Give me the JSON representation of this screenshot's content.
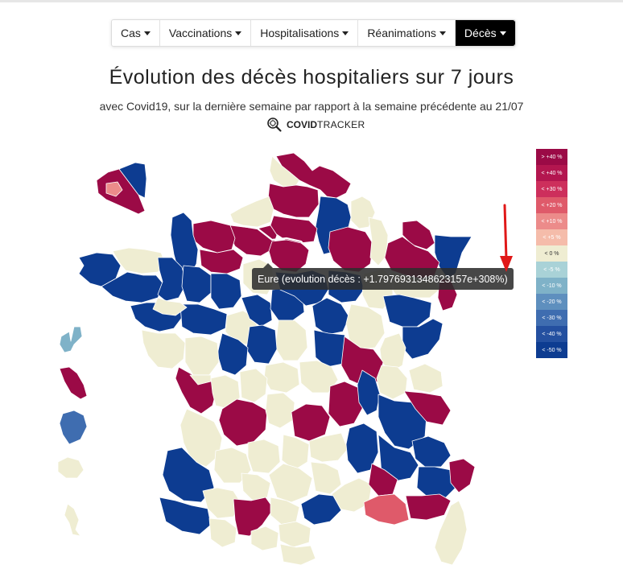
{
  "nav": {
    "items": [
      {
        "label": "Cas",
        "active": false
      },
      {
        "label": "Vaccinations",
        "active": false
      },
      {
        "label": "Hospitalisations",
        "active": false
      },
      {
        "label": "Réanimations",
        "active": false
      },
      {
        "label": "Décès",
        "active": true
      }
    ]
  },
  "header": {
    "title": "Évolution des décès hospitaliers sur 7 jours",
    "subtitle": "avec Covid19, sur la dernière semaine par rapport à la semaine précédente au 21/07",
    "brand_bold": "COVID",
    "brand_light": "TRACKER"
  },
  "legend": {
    "items": [
      {
        "label": "> +40 %",
        "color": "#9b0a46",
        "text_color": "#ffffff"
      },
      {
        "label": "< +40 %",
        "color": "#b3164f",
        "text_color": "#ffffff"
      },
      {
        "label": "< +30 %",
        "color": "#cd2f5c",
        "text_color": "#ffffff"
      },
      {
        "label": "< +20 %",
        "color": "#df5a6a",
        "text_color": "#ffffff"
      },
      {
        "label": "< +10 %",
        "color": "#ec8b8a",
        "text_color": "#ffffff"
      },
      {
        "label": "< +5 %",
        "color": "#f5bcaa",
        "text_color": "#ffffff"
      },
      {
        "label": "< 0 %",
        "color": "#efedd2",
        "text_color": "#333333"
      },
      {
        "label": "< -5 %",
        "color": "#a9d2d7",
        "text_color": "#ffffff"
      },
      {
        "label": "< -10 %",
        "color": "#7fb2c8",
        "text_color": "#ffffff"
      },
      {
        "label": "< -20 %",
        "color": "#5e8fbe",
        "text_color": "#ffffff"
      },
      {
        "label": "< -30 %",
        "color": "#3f6db0",
        "text_color": "#ffffff"
      },
      {
        "label": "< -40 %",
        "color": "#2450a0",
        "text_color": "#ffffff"
      },
      {
        "label": "< -50 %",
        "color": "#0d3c91",
        "text_color": "#ffffff"
      }
    ]
  },
  "tooltip": {
    "text": "Eure (evolution décès : +1.7976931348623157e+308%)"
  },
  "map": {
    "colors": {
      "red": "#9b0a46",
      "blue": "#0d3c91",
      "beige": "#efedd2",
      "pink": "#df5a6a",
      "light_pink": "#ec8b8a",
      "light_blue": "#7fb2c8",
      "mid_blue": "#3f6db0"
    },
    "regions": [
      "Nord",
      "Pas-de-Calais",
      "Somme",
      "Aisne",
      "Oise",
      "Seine-Maritime",
      "Eure",
      "Calvados",
      "Manche",
      "Orne",
      "Finistère",
      "Côtes-d'Armor",
      "Morbihan",
      "Ille-et-Vilaine",
      "Mayenne",
      "Sarthe",
      "Marne",
      "Ardennes",
      "Meuse",
      "Moselle",
      "Bas-Rhin",
      "Haut-Rhin",
      "Vosges",
      "Haute-Marne",
      "Loire-Atlantique",
      "Vendée",
      "Maine-et-Loire",
      "Indre-et-Loire",
      "Loir-et-Cher",
      "Loiret",
      "Cher",
      "Yonne",
      "Côte-d'Or",
      "Doubs",
      "Charente-Maritime",
      "Vienne",
      "Haute-Vienne",
      "Creuse",
      "Allier",
      "Saône-et-Loire",
      "Ain",
      "Rhône",
      "Isère",
      "Savoie",
      "Haute-Savoie",
      "Gironde",
      "Dordogne",
      "Corrèze",
      "Puy-de-Dôme",
      "Loire",
      "Cantal",
      "Haute-Loire",
      "Ardèche",
      "Drôme",
      "Hautes-Alpes",
      "Landes",
      "Lot-et-Garonne",
      "Lot",
      "Aveyron",
      "Lozère",
      "Gard",
      "Vaucluse",
      "Bouches-du-Rhône",
      "Var",
      "Alpes-Maritimes",
      "Pyrénées-Atlantiques",
      "Hautes-Pyrénées",
      "Haute-Garonne",
      "Tarn",
      "Hérault",
      "Aude",
      "Pyrénées-Orientales",
      "Ariège",
      "Gers",
      "Tarn-et-Garonne",
      "Corse",
      "Île-de-France",
      "Guadeloupe",
      "Martinique",
      "Guyane",
      "La Réunion",
      "Mayotte"
    ]
  }
}
